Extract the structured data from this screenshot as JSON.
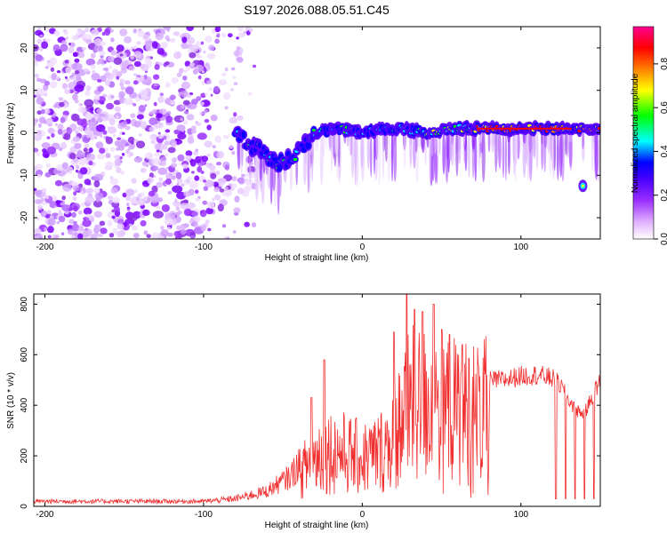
{
  "title": "S197.2026.088.05.51.C45",
  "chart_data": [
    {
      "type": "heatmap",
      "xlabel": "Height of straight line (km)",
      "ylabel": "Frequency (Hz)",
      "xlim": [
        -207,
        150
      ],
      "ylim": [
        -25,
        25
      ],
      "xticks": [
        -200,
        -100,
        0,
        100
      ],
      "yticks": [
        -20,
        -10,
        0,
        10,
        20
      ],
      "ridge": [
        [
          -78,
          0
        ],
        [
          -70,
          -3
        ],
        [
          -62,
          -5
        ],
        [
          -52,
          -7
        ],
        [
          -44,
          -6
        ],
        [
          -38,
          -3
        ],
        [
          -33,
          -1
        ],
        [
          -28,
          0
        ],
        [
          -15,
          1
        ],
        [
          0,
          0
        ],
        [
          15,
          1
        ],
        [
          25,
          1
        ],
        [
          40,
          0
        ],
        [
          60,
          1
        ],
        [
          80,
          1
        ],
        [
          100,
          1
        ],
        [
          120,
          1
        ],
        [
          132,
          1
        ],
        [
          148,
          1
        ]
      ],
      "isolated_feature": {
        "x": 139,
        "y": -12.5
      },
      "colorbar": {
        "label": "Normalized spectral amplitude",
        "ticks": [
          "0.0",
          "0.2",
          "0.4",
          "0.6",
          "0.8"
        ],
        "tick_values": [
          0,
          0.2,
          0.4,
          0.6,
          0.8
        ],
        "range": [
          0,
          0.97
        ],
        "colors": [
          "#ffffff",
          "#e0b0ff",
          "#9b30ff",
          "#6a00ff",
          "#0000ff",
          "#00ffff",
          "#00ff00",
          "#ffff00",
          "#ff8000",
          "#ff0000",
          "#ff0090"
        ]
      }
    },
    {
      "type": "line",
      "xlabel": "Height of straight line (km)",
      "ylabel": "SNR (10 * v/v)",
      "xlim": [
        -207,
        150
      ],
      "ylim": [
        0,
        840
      ],
      "xticks": [
        -200,
        -100,
        0,
        100
      ],
      "yticks": [
        0,
        200,
        400,
        600,
        800
      ],
      "color": "#f03030",
      "envelope": [
        [
          -207,
          20
        ],
        [
          -100,
          20
        ],
        [
          -80,
          30
        ],
        [
          -60,
          60
        ],
        [
          -45,
          120
        ],
        [
          -35,
          220
        ],
        [
          -25,
          300
        ],
        [
          -15,
          300
        ],
        [
          0,
          260
        ],
        [
          10,
          290
        ],
        [
          15,
          330
        ],
        [
          20,
          400
        ],
        [
          25,
          480
        ],
        [
          30,
          550
        ],
        [
          40,
          560
        ],
        [
          50,
          530
        ],
        [
          60,
          520
        ],
        [
          70,
          510
        ],
        [
          80,
          520
        ],
        [
          90,
          525
        ],
        [
          100,
          540
        ],
        [
          110,
          545
        ],
        [
          120,
          530
        ],
        [
          125,
          500
        ],
        [
          130,
          440
        ],
        [
          135,
          400
        ],
        [
          140,
          380
        ],
        [
          145,
          460
        ],
        [
          150,
          520
        ]
      ],
      "peaks": [
        [
          -24,
          580
        ],
        [
          -32,
          430
        ],
        [
          20,
          690
        ],
        [
          28,
          840
        ],
        [
          33,
          780
        ],
        [
          38,
          770
        ],
        [
          45,
          800
        ],
        [
          50,
          700
        ],
        [
          55,
          680
        ],
        [
          63,
          640
        ]
      ]
    }
  ]
}
